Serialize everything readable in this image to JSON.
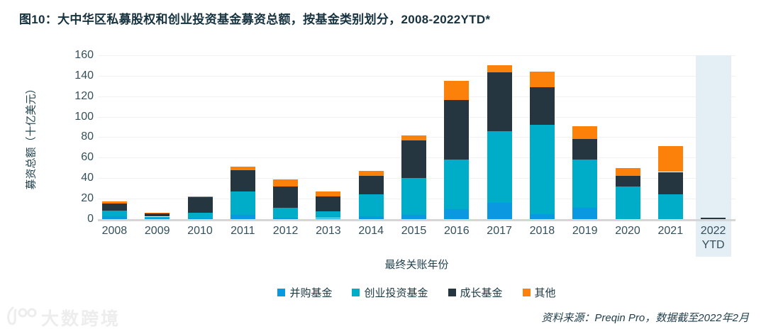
{
  "title": "图10：大中华区私募股权和创业投资基金募资总额，按基金类别划分，2008-2022YTD*",
  "source": "资料来源：Preqin Pro，数据截至2022年2月",
  "watermark": "大数跨境",
  "chart_data": {
    "type": "bar",
    "stacked": true,
    "title": "大中华区私募股权和创业投资基金募资总额，按基金类别划分，2008-2022YTD",
    "xlabel": "最终关账年份",
    "ylabel": "募资总额（十亿美元）",
    "ylim": [
      0,
      160
    ],
    "yticks": [
      0,
      20,
      40,
      60,
      80,
      100,
      120,
      140,
      160
    ],
    "grid": true,
    "legend_position": "bottom",
    "categories": [
      "2008",
      "2009",
      "2010",
      "2011",
      "2012",
      "2013",
      "2014",
      "2015",
      "2016",
      "2017",
      "2018",
      "2019",
      "2020",
      "2021",
      "2022 YTD"
    ],
    "series": [
      {
        "name": "并购基金",
        "color": "#0a99e0",
        "values": [
          2.5,
          0.4,
          0.5,
          4,
          1.5,
          1,
          3,
          4,
          10,
          16,
          5,
          11,
          0,
          0,
          0
        ]
      },
      {
        "name": "创业投资基金",
        "color": "#00adc8",
        "values": [
          6,
          2,
          6,
          23,
          9.5,
          7,
          21,
          36,
          48,
          70,
          87,
          47,
          32,
          24,
          0
        ]
      },
      {
        "name": "成长基金",
        "color": "#263640",
        "values": [
          7,
          3,
          15,
          21,
          21,
          14.5,
          18,
          37,
          58,
          57,
          37,
          20,
          10,
          22,
          1.5
        ]
      },
      {
        "name": "其他",
        "color": "#fb810a",
        "values": [
          1.5,
          1.2,
          0.8,
          3,
          6.5,
          4.5,
          5,
          5,
          19,
          7,
          15,
          13,
          8,
          25,
          0
        ]
      }
    ],
    "highlight": {
      "category": "2022 YTD",
      "color": "#e3eef5"
    }
  }
}
